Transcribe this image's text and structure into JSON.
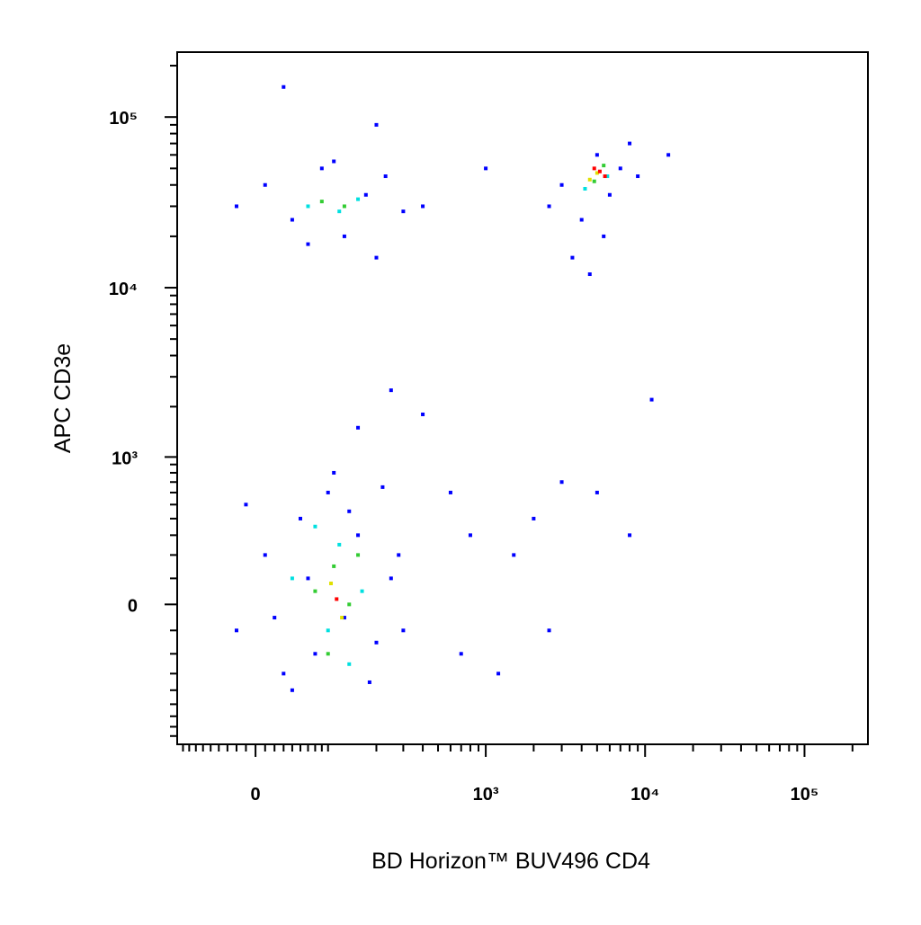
{
  "chart_data": {
    "type": "scatter",
    "x_label": "BD Horizon™ BUV496 CD4",
    "y_label": "APC CD3e",
    "xscale": "biexponential",
    "yscale": "biexponential",
    "xlim": [
      -100,
      250000
    ],
    "ylim": [
      -900,
      240000
    ],
    "xticks": [
      0,
      {
        "value": 1000,
        "label": "10³"
      },
      {
        "value": 10000,
        "label": "10⁴"
      },
      {
        "value": 100000,
        "label": "10⁵"
      }
    ],
    "yticks": [
      0,
      {
        "value": 1000,
        "label": "10³"
      },
      {
        "value": 10000,
        "label": "10⁴"
      },
      {
        "value": 100000,
        "label": "10⁵"
      }
    ],
    "xminorticks": [
      -90,
      -80,
      -70,
      -60,
      -50,
      -40,
      -30,
      -20,
      -10,
      10,
      20,
      30,
      40,
      50,
      60,
      70,
      80,
      90,
      200,
      300,
      400,
      500,
      600,
      700,
      800,
      900,
      2000,
      3000,
      4000,
      5000,
      6000,
      7000,
      8000,
      9000,
      20000,
      30000,
      40000,
      50000,
      60000,
      70000,
      80000,
      90000,
      200000
    ],
    "yminorticks": [
      -800,
      -700,
      -600,
      -500,
      -400,
      -300,
      -200,
      -100,
      100,
      200,
      300,
      400,
      500,
      600,
      700,
      800,
      900,
      2000,
      3000,
      4000,
      5000,
      6000,
      7000,
      8000,
      9000,
      20000,
      30000,
      40000,
      50000,
      60000,
      70000,
      80000,
      90000,
      200000
    ],
    "series": [
      {
        "color": "#0000ff",
        "x": [
          -20,
          10,
          30,
          50,
          70,
          90,
          120,
          150,
          200,
          250,
          -10,
          40,
          100,
          180,
          280,
          60,
          20,
          130,
          220,
          300,
          150,
          250,
          400,
          600,
          800,
          1500,
          2000,
          3000,
          5000,
          8000,
          2500,
          1200,
          700,
          -20,
          10,
          40,
          80,
          120,
          170,
          230,
          300,
          200,
          60,
          400,
          100,
          3000,
          4000,
          5000,
          6000,
          7000,
          8000,
          3500,
          4500,
          5500,
          9000,
          2500,
          30,
          200,
          14000,
          1000,
          11000
        ],
        "y": [
          -100,
          200,
          -300,
          400,
          -200,
          600,
          -50,
          300,
          -150,
          100,
          500,
          -400,
          800,
          -350,
          200,
          100,
          -50,
          450,
          650,
          -100,
          1500,
          2500,
          1800,
          600,
          300,
          200,
          400,
          700,
          600,
          300,
          -100,
          -300,
          -200,
          30000,
          40000,
          25000,
          50000,
          20000,
          35000,
          45000,
          28000,
          15000,
          18000,
          30000,
          55000,
          40000,
          25000,
          60000,
          35000,
          50000,
          70000,
          15000,
          12000,
          20000,
          45000,
          30000,
          150000,
          90000,
          60000,
          50000,
          2200
        ]
      },
      {
        "color": "#00e0e0",
        "x": [
          40,
          90,
          110,
          160,
          70,
          130,
          60,
          110,
          150,
          4200,
          5800
        ],
        "y": [
          100,
          -100,
          250,
          50,
          350,
          -250,
          30000,
          28000,
          33000,
          38000,
          45000
        ]
      },
      {
        "color": "#33cc33",
        "x": [
          70,
          100,
          130,
          90,
          150,
          80,
          120,
          4800,
          5500
        ],
        "y": [
          50,
          150,
          0,
          -200,
          200,
          32000,
          30000,
          42000,
          52000
        ]
      },
      {
        "color": "#e0e000",
        "x": [
          95,
          115,
          5000,
          4500
        ],
        "y": [
          80,
          -50,
          47000,
          43000
        ]
      },
      {
        "color": "#ff0000",
        "x": [
          105,
          5200,
          4800,
          5600
        ],
        "y": [
          20,
          48000,
          50000,
          45000
        ]
      }
    ]
  }
}
